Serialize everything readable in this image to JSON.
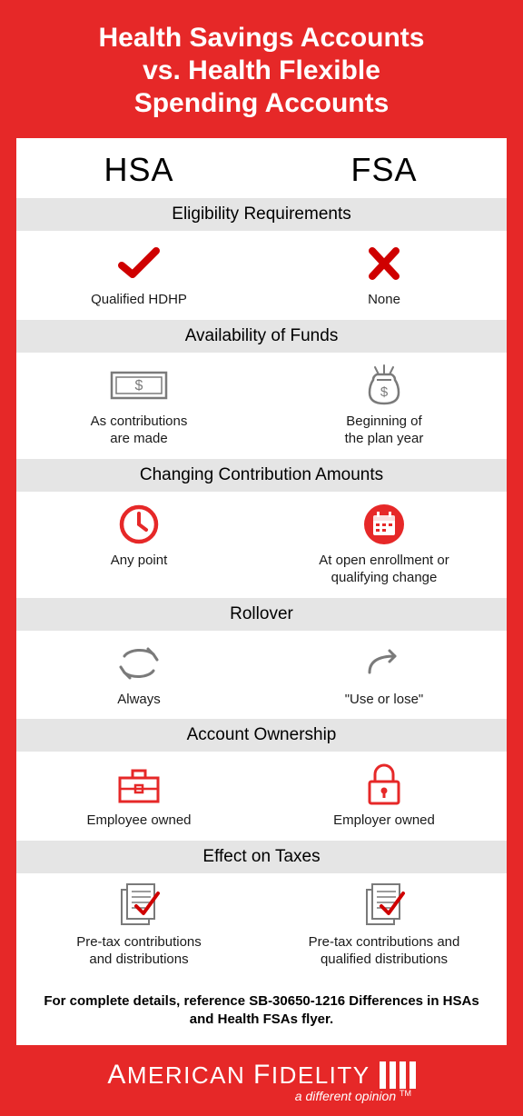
{
  "colors": {
    "red": "#e62828",
    "darkRed": "#cf0000",
    "gray": "#7a7a7a",
    "barGray": "#e5e5e5"
  },
  "header": {
    "title_l1": "Health Savings Accounts",
    "title_l2": "vs. Health Flexible",
    "title_l3": "Spending Accounts"
  },
  "columns": {
    "left": "HSA",
    "right": "FSA"
  },
  "sections": [
    {
      "title": "Eligibility Requirements",
      "left": {
        "icon": "check",
        "label": "Qualified HDHP"
      },
      "right": {
        "icon": "x",
        "label": "None"
      }
    },
    {
      "title": "Availability of Funds",
      "left": {
        "icon": "bill",
        "label": "As contributions\nare made"
      },
      "right": {
        "icon": "moneybag",
        "label": "Beginning of\nthe plan year"
      }
    },
    {
      "title": "Changing Contribution Amounts",
      "left": {
        "icon": "clock",
        "label": "Any point"
      },
      "right": {
        "icon": "calendar",
        "label": "At open enrollment or\nqualifying change"
      }
    },
    {
      "title": "Rollover",
      "left": {
        "icon": "cycle",
        "label": "Always"
      },
      "right": {
        "icon": "oneArrow",
        "label": "\"Use or lose\""
      }
    },
    {
      "title": "Account Ownership",
      "left": {
        "icon": "briefcase",
        "label": "Employee owned"
      },
      "right": {
        "icon": "lock",
        "label": "Employer owned"
      }
    },
    {
      "title": "Effect on Taxes",
      "left": {
        "icon": "doc",
        "label": "Pre-tax contributions\nand distributions"
      },
      "right": {
        "icon": "doc",
        "label": "Pre-tax contributions and\nqualified distributions"
      }
    }
  ],
  "footnote": "For complete details, reference SB-30650-1216 Differences in HSAs and Health FSAs flyer.",
  "footer": {
    "brand_a": "A",
    "brand_merican": "MERICAN",
    "brand_f": "F",
    "brand_idelity": "IDELITY",
    "tagline": "a different opinion"
  }
}
